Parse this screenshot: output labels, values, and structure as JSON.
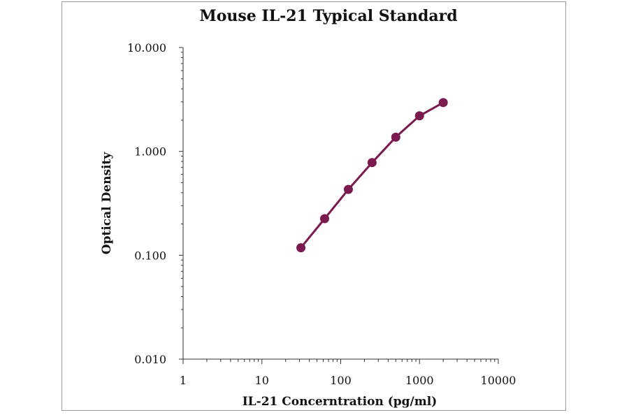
{
  "chart_data": {
    "type": "scatter",
    "title": "Mouse IL-21 Typical Standard",
    "xlabel": "IL-21 Concerntration (pg/ml)",
    "ylabel": "Optical Density",
    "xscale": "log",
    "yscale": "log",
    "xlim": [
      1,
      10000
    ],
    "ylim": [
      0.01,
      10
    ],
    "x_ticks": [
      "1",
      "10",
      "100",
      "1000",
      "10000"
    ],
    "y_ticks": [
      "0.010",
      "0.100",
      "1.000",
      "10.000"
    ],
    "grid": false,
    "legend": "none",
    "series": [
      {
        "x": [
          31.25,
          62.5,
          125,
          250,
          500,
          1000,
          2000
        ],
        "y": [
          0.118,
          0.225,
          0.43,
          0.78,
          1.37,
          2.2,
          2.95
        ],
        "color": "#7a1a4e",
        "marker": "circle",
        "connected": true
      }
    ]
  }
}
